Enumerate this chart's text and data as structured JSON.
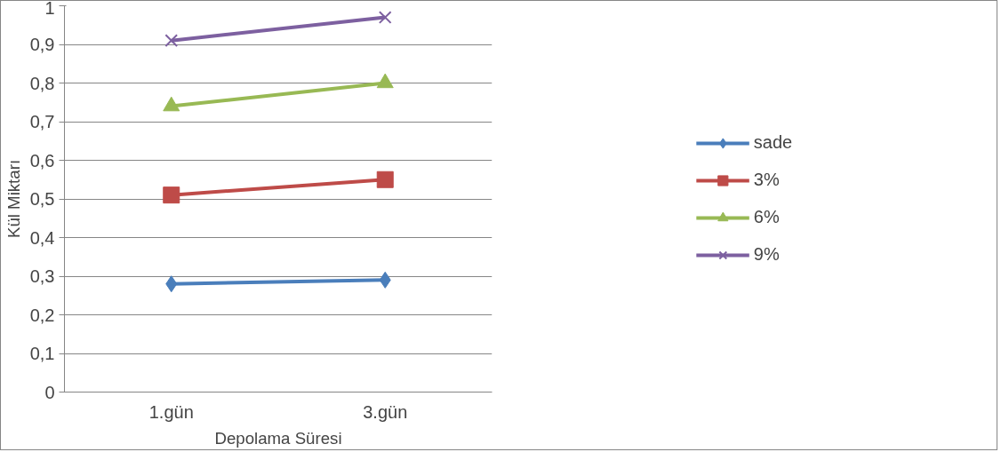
{
  "chart_data": {
    "type": "line",
    "xlabel": "Depolama Süresi",
    "ylabel": "Kül Miktarı",
    "categories": [
      "1.gün",
      "3.gün"
    ],
    "series": [
      {
        "name": "sade",
        "color": "#4a7ebb",
        "marker": "diamond",
        "values": [
          0.28,
          0.29
        ]
      },
      {
        "name": "3%",
        "color": "#be4b48",
        "marker": "square",
        "values": [
          0.51,
          0.55
        ]
      },
      {
        "name": "6%",
        "color": "#98b954",
        "marker": "triangle",
        "values": [
          0.74,
          0.8
        ]
      },
      {
        "name": "9%",
        "color": "#7d60a0",
        "marker": "cross",
        "values": [
          0.91,
          0.97
        ]
      }
    ],
    "ylim": [
      0,
      1
    ],
    "yticks": [
      0,
      {
        "value": 0.1,
        "label": "0,1"
      },
      {
        "value": 0.2,
        "label": "0,2"
      },
      {
        "value": 0.3,
        "label": "0,3"
      },
      {
        "value": 0.4,
        "label": "0,4"
      },
      {
        "value": 0.5,
        "label": "0,5"
      },
      {
        "value": 0.6,
        "label": "0,6"
      },
      {
        "value": 0.7,
        "label": "0,7"
      },
      {
        "value": 0.8,
        "label": "0,8"
      },
      {
        "value": 0.9,
        "label": "0,9"
      },
      1
    ],
    "grid": "y",
    "legend": "right",
    "line_style": "solid"
  }
}
